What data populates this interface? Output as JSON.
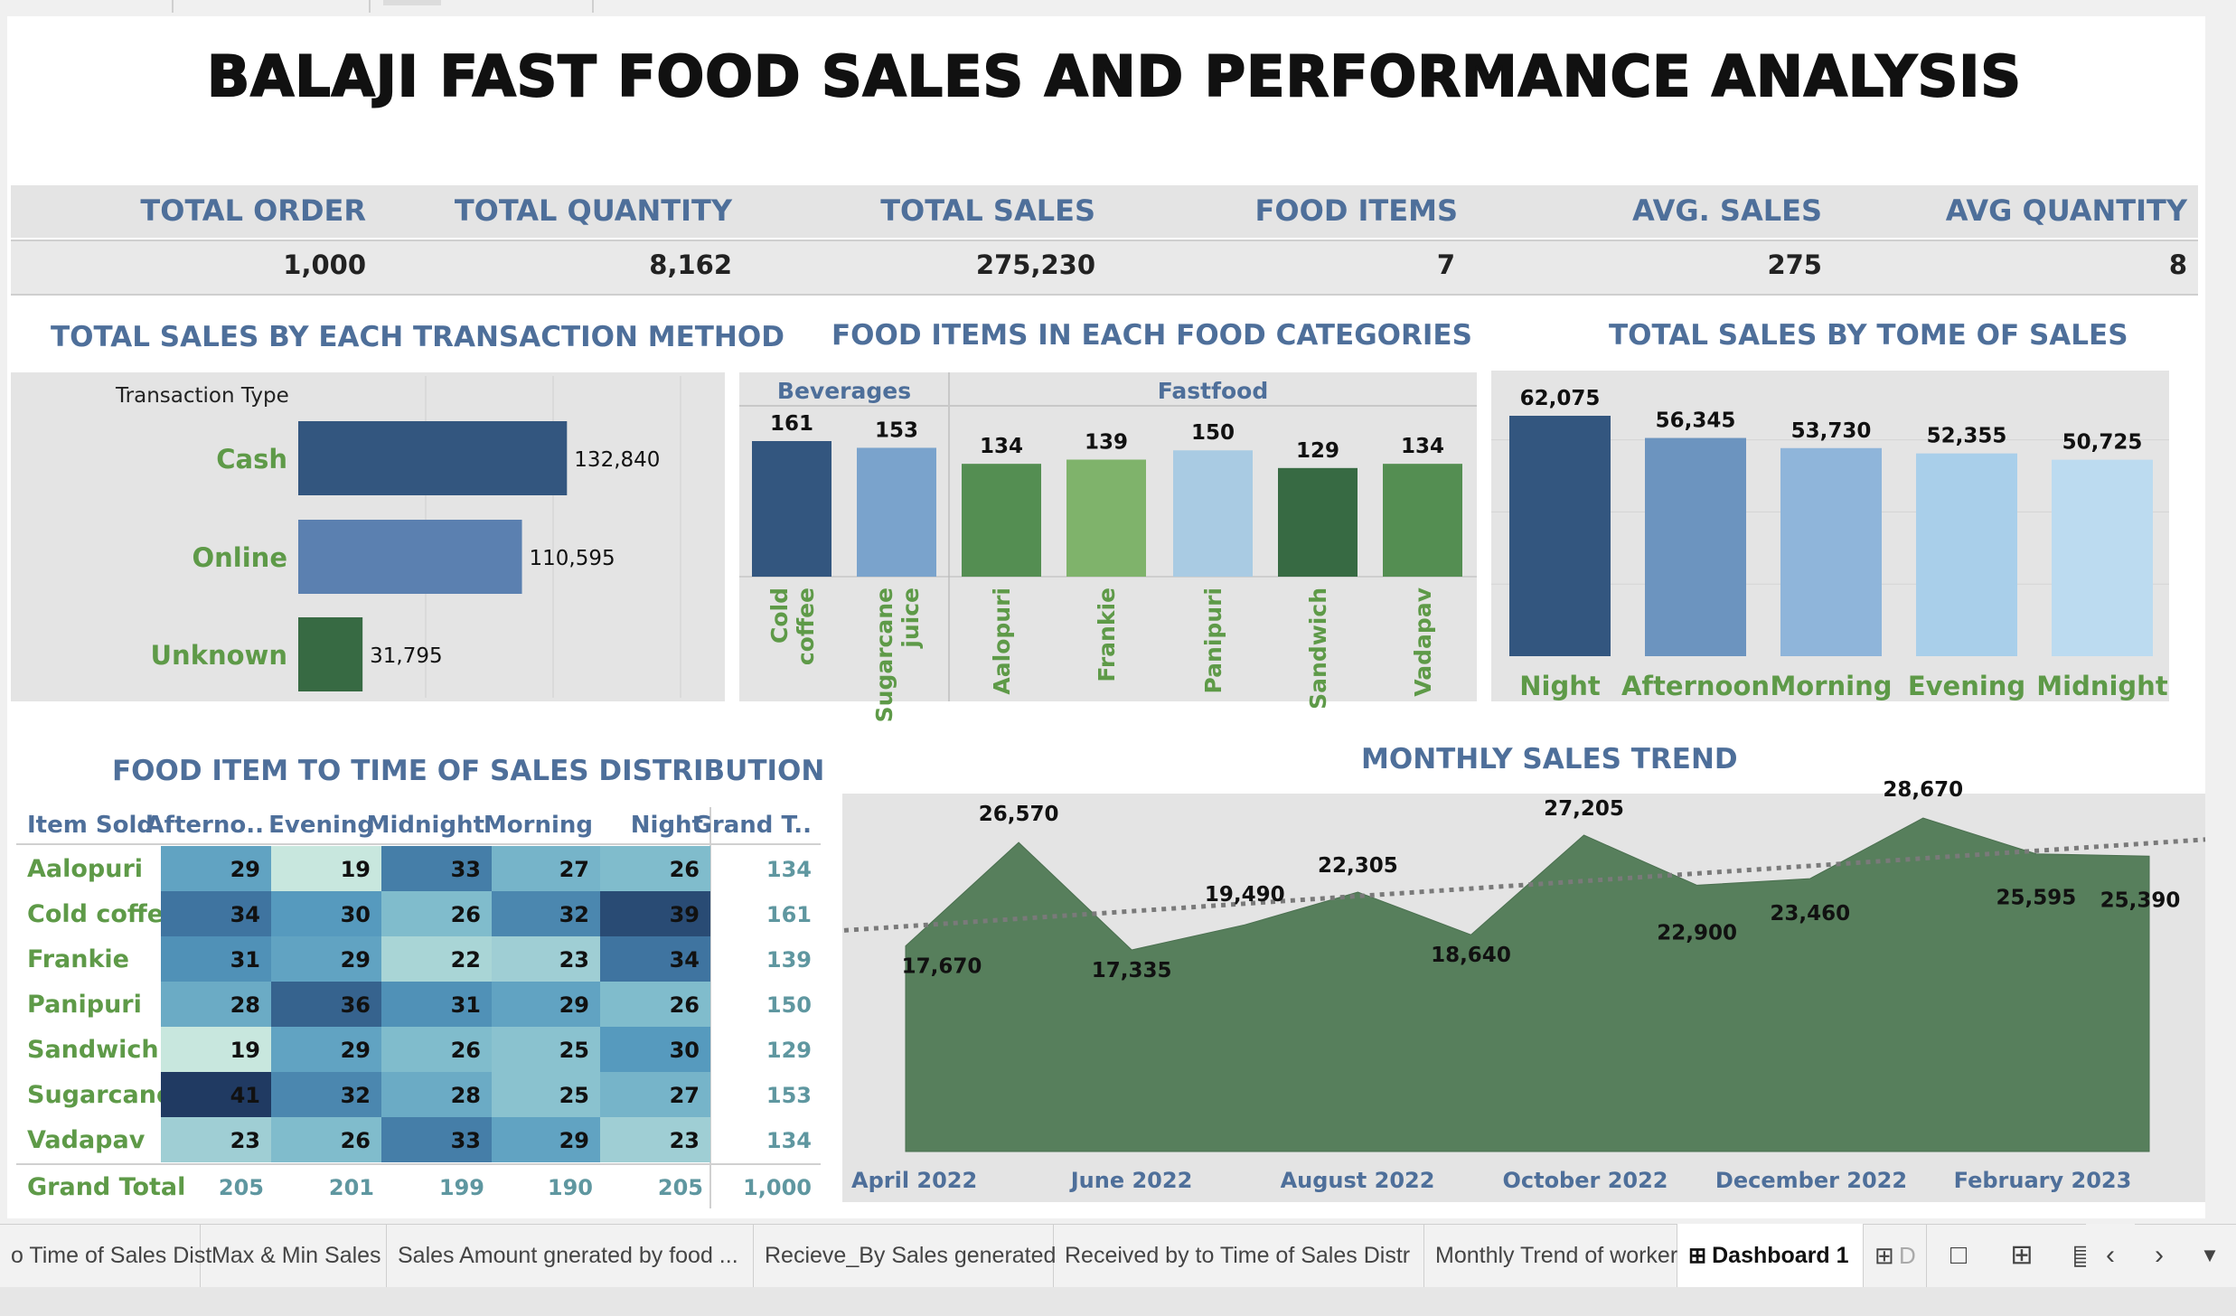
{
  "title": "BALAJI FAST FOOD SALES AND PERFORMANCE ANALYSIS",
  "kpis": [
    {
      "label": "TOTAL ORDER",
      "value": "1,000"
    },
    {
      "label": "TOTAL QUANTITY",
      "value": "8,162"
    },
    {
      "label": "TOTAL SALES",
      "value": "275,230"
    },
    {
      "label": "FOOD ITEMS",
      "value": "7"
    },
    {
      "label": "AVG. SALES",
      "value": "275"
    },
    {
      "label": "AVG QUANTITY",
      "value": "8"
    }
  ],
  "colors": {
    "dark_blue": "#33567f",
    "mid_blue": "#5b80b0",
    "light_blue": "#7aa3cc",
    "pale_blue": "#a9cbe3",
    "dark_green": "#376a43",
    "green": "#548e52",
    "light_green": "#7fb36b",
    "area_green": "#577f5c",
    "title_blue": "#4e6f9a",
    "label_green": "#5e9a48"
  },
  "chart_data": [
    {
      "type": "bar",
      "orientation": "horizontal",
      "title": "TOTAL SALES BY EACH TRANSACTION METHOD",
      "axis_header": "Transaction Type",
      "categories": [
        "Cash",
        "Online",
        "Unknown"
      ],
      "values": [
        132840,
        110595,
        31795
      ],
      "value_labels": [
        "132,840",
        "110,595",
        "31,795"
      ],
      "colors": [
        "#33567f",
        "#5b80b0",
        "#376a43"
      ],
      "xlim": [
        0,
        210000
      ],
      "grid": true
    },
    {
      "type": "bar",
      "title": "FOOD ITEMS IN EACH FOOD CATEGORIES",
      "groups": [
        {
          "name": "Beverages",
          "items": [
            "Cold coffee",
            "Sugarcane juice"
          ],
          "values": [
            161,
            153
          ],
          "colors": [
            "#33567f",
            "#7aa3cc"
          ]
        },
        {
          "name": "Fastfood",
          "items": [
            "Aalopuri",
            "Frankie",
            "Panipuri",
            "Sandwich",
            "Vadapav"
          ],
          "values": [
            134,
            139,
            150,
            129,
            134
          ],
          "colors": [
            "#548e52",
            "#7fb36b",
            "#a9cbe3",
            "#376a43",
            "#548e52"
          ]
        }
      ],
      "ylim": [
        0,
        180
      ]
    },
    {
      "type": "bar",
      "title": "TOTAL SALES BY TOME OF SALES",
      "categories": [
        "Night",
        "Afternoon",
        "Morning",
        "Evening",
        "Midnight"
      ],
      "values": [
        62075,
        56345,
        53730,
        52355,
        50725
      ],
      "value_labels": [
        "62,075",
        "56,345",
        "53,730",
        "52,355",
        "50,725"
      ],
      "colors": [
        "#33567f",
        "#6c94bf",
        "#8fb5da",
        "#a9cfea",
        "#bcdbf0"
      ],
      "ylim": [
        0,
        70000
      ],
      "grid": true
    },
    {
      "type": "heatmap",
      "title": "FOOD ITEM TO TIME OF SALES DISTRIBUTION",
      "row_header": "Item Sold",
      "columns": [
        "Afterno..",
        "Evening",
        "Midnight",
        "Morning",
        "Night",
        "Grand T.."
      ],
      "rows": [
        "Aalopuri",
        "Cold coffee",
        "Frankie",
        "Panipuri",
        "Sandwich",
        "Sugarcane..",
        "Vadapav"
      ],
      "values": [
        [
          29,
          19,
          33,
          27,
          26
        ],
        [
          34,
          30,
          26,
          32,
          39
        ],
        [
          31,
          29,
          22,
          23,
          34
        ],
        [
          28,
          36,
          31,
          29,
          26
        ],
        [
          19,
          29,
          26,
          25,
          30
        ],
        [
          41,
          32,
          28,
          25,
          27
        ],
        [
          23,
          26,
          33,
          29,
          23
        ]
      ],
      "row_totals": [
        "134",
        "161",
        "139",
        "150",
        "129",
        "153",
        "134"
      ],
      "total_label": "Grand Total",
      "column_totals": [
        "205",
        "201",
        "199",
        "190",
        "205",
        "1,000"
      ]
    },
    {
      "type": "area",
      "title": "MONTHLY SALES TREND",
      "x": [
        "2022-04",
        "2022-05",
        "2022-06",
        "2022-07",
        "2022-08",
        "2022-09",
        "2022-10",
        "2022-11",
        "2022-12",
        "2023-01",
        "2023-02",
        "2023-03"
      ],
      "values": [
        17670,
        26570,
        17335,
        19490,
        22305,
        18640,
        27205,
        22900,
        23460,
        28670,
        25595,
        25390
      ],
      "value_labels": [
        "17,670",
        "26,570",
        "17,335",
        "19,490",
        "22,305",
        "18,640",
        "27,205",
        "22,900",
        "23,460",
        "28,670",
        "25,595",
        "25,390"
      ],
      "x_tick_labels": [
        "April 2022",
        "June 2022",
        "August 2022",
        "October 2022",
        "December 2022",
        "February 2023"
      ],
      "trend_line": true,
      "ylim": [
        0,
        35000
      ]
    }
  ],
  "tabs": [
    "o Time of Sales Dist",
    "Max & Min Sales",
    "Sales Amount gnerated by food ...",
    "Recieve_By Sales generated",
    "Received by to Time of Sales Distr",
    "Monthly Trend of worker",
    "Dashboard 1"
  ],
  "tab_icons": [
    "new-worksheet-icon",
    "new-dashboard-icon",
    "new-story-icon",
    "prev-tab-icon",
    "next-tab-icon",
    "tab-menu-icon"
  ]
}
